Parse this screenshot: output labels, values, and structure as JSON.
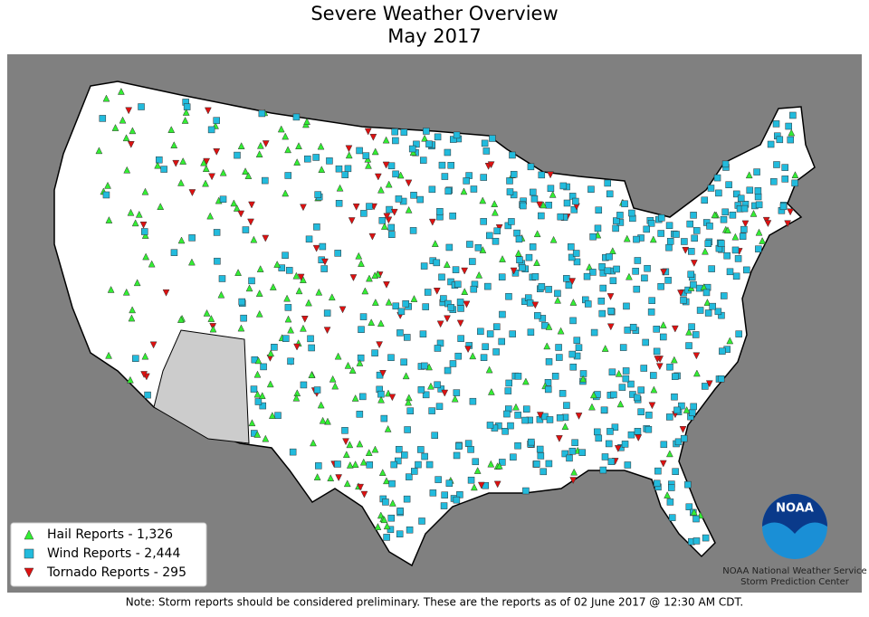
{
  "header": {
    "title": "Severe Weather Overview",
    "subtitle": "May 2017"
  },
  "legend": [
    {
      "label": "Hail Reports - 1,326",
      "color": "#33ee33",
      "shape": "triangle-up"
    },
    {
      "label": "Wind Reports - 2,444",
      "color": "#22bbdd",
      "shape": "square"
    },
    {
      "label": "Tornado Reports - 295",
      "color": "#dd1111",
      "shape": "triangle-down"
    }
  ],
  "logo": {
    "mark": "NOAA",
    "line1": "NOAA National Weather Service",
    "line2": "Storm Prediction Center"
  },
  "note": "Note: Storm reports should be considered preliminary. These are the reports as of 02 June 2017 @ 12:30 AM CDT."
}
